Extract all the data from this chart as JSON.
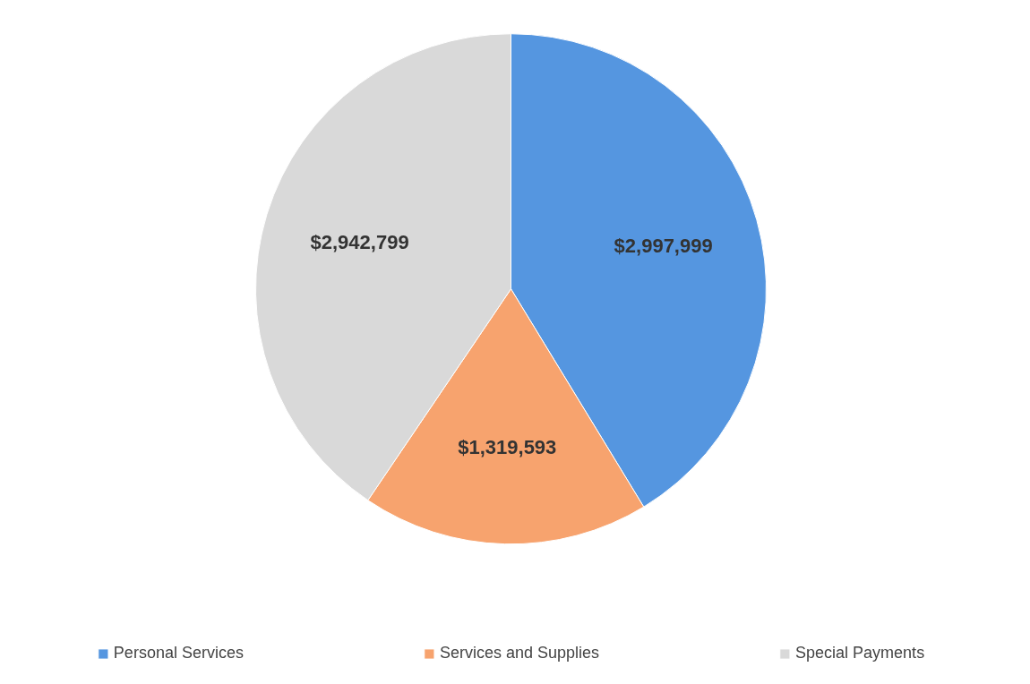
{
  "chart_data": {
    "type": "pie",
    "categories": [
      "Personal Services",
      "Services and Supplies",
      "Special Payments"
    ],
    "values": [
      2997999,
      1319593,
      2942799
    ],
    "colors": [
      "#5596e0",
      "#f7a36e",
      "#d9d9d9"
    ],
    "value_labels": [
      "$2,997,999",
      "$1,319,593",
      "$2,942,799"
    ],
    "legend": "bottom"
  }
}
